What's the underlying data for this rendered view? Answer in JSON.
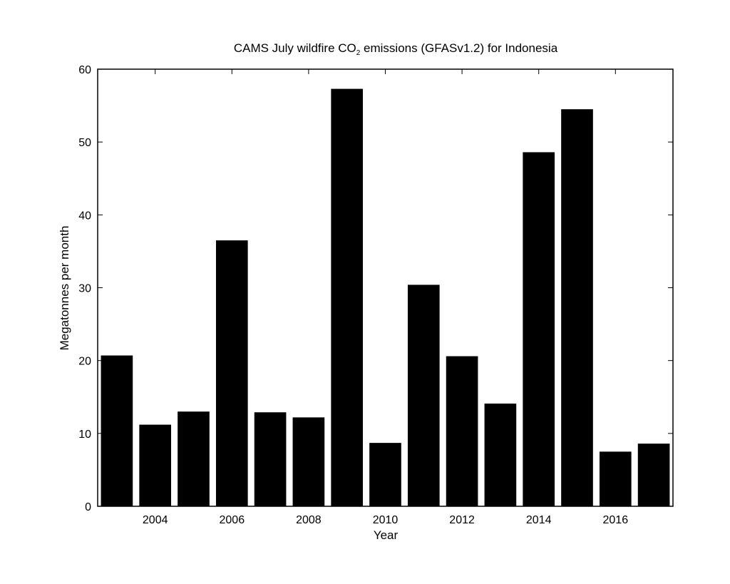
{
  "chart_data": {
    "type": "bar",
    "title": "CAMS July wildfire CO2 emissions (GFASv1.2) for Indonesia",
    "title_parts": {
      "before": "CAMS July wildfire CO",
      "subscript": "2",
      "after": " emissions (GFASv1.2) for Indonesia"
    },
    "xlabel": "Year",
    "ylabel": "Megatonnes per month",
    "x": [
      2003,
      2004,
      2005,
      2006,
      2007,
      2008,
      2009,
      2010,
      2011,
      2012,
      2013,
      2014,
      2015,
      2016,
      2017
    ],
    "values": [
      20.7,
      11.2,
      13.0,
      36.5,
      12.9,
      12.2,
      57.3,
      8.7,
      30.4,
      20.6,
      14.1,
      48.6,
      54.5,
      7.5,
      8.6
    ],
    "xlim": [
      2002.5,
      2017.5
    ],
    "ylim": [
      0,
      60
    ],
    "xticks": [
      2004,
      2006,
      2008,
      2010,
      2012,
      2014,
      2016
    ],
    "yticks": [
      0,
      10,
      20,
      30,
      40,
      50,
      60
    ],
    "bar_color": "#000000",
    "grid": false,
    "legend": false
  }
}
